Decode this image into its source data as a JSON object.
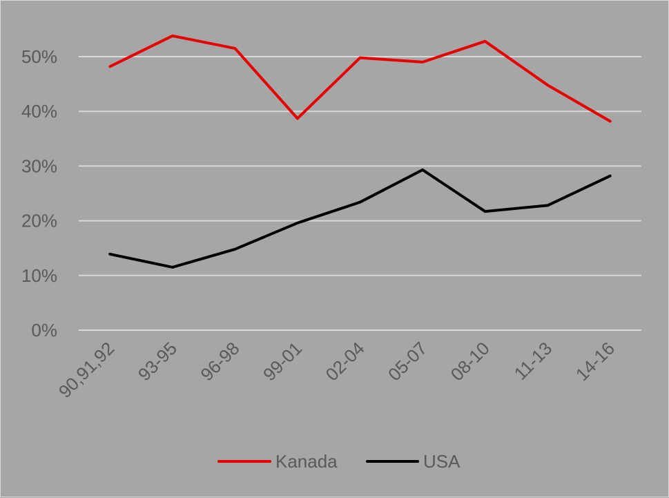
{
  "chart_data": {
    "type": "line",
    "categories": [
      "90,91,92",
      "93-95",
      "96-98",
      "99-01",
      "02-04",
      "05-07",
      "08-10",
      "11-13",
      "14-16"
    ],
    "series": [
      {
        "name": "Kanada",
        "color": "#e60000",
        "values": [
          48.2,
          53.8,
          51.5,
          38.7,
          49.8,
          49.0,
          52.8,
          44.8,
          38.2
        ]
      },
      {
        "name": "USA",
        "color": "#000000",
        "values": [
          13.9,
          11.5,
          14.8,
          19.6,
          23.4,
          29.3,
          21.7,
          22.8,
          28.2
        ]
      }
    ],
    "yticks": [
      "0%",
      "10%",
      "20%",
      "30%",
      "40%",
      "50%"
    ],
    "ylim": [
      0,
      55
    ],
    "grid": true,
    "legend": "bottom",
    "title": "",
    "xlabel": "",
    "ylabel": "",
    "colors": {
      "background": "#a6a6a6",
      "gridline": "#d9d9d9",
      "text": "#595959"
    }
  }
}
